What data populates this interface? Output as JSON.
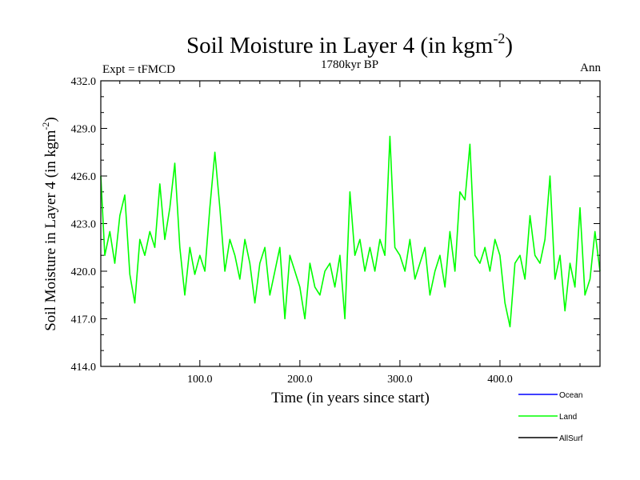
{
  "header": {
    "title_main": "Soil Moisture in Layer 4 (in kgm",
    "title_sup": "-2",
    "title_close": ")",
    "subtitle": "1780kyr BP",
    "left_label": "Expt = tFMCD",
    "right_label": "Ann"
  },
  "axes": {
    "xlabel": "Time (in years since start)",
    "ylabel_main": "Soil Moisture in Layer 4 (in kgm",
    "ylabel_sup": "-2",
    "ylabel_close": ")"
  },
  "legend": {
    "items": [
      {
        "label": "Ocean",
        "color": "#0000ff"
      },
      {
        "label": "Land",
        "color": "#00ff00"
      },
      {
        "label": "AllSurf",
        "color": "#000000"
      }
    ]
  },
  "chart_data": {
    "type": "line",
    "title": "Soil Moisture in Layer 4 (in kgm-2)",
    "xlabel": "Time (in years since start)",
    "ylabel": "Soil Moisture in Layer 4 (in kgm-2)",
    "xlim": [
      1,
      500
    ],
    "ylim": [
      414,
      432
    ],
    "xticks": [
      100,
      200,
      300,
      400
    ],
    "xtick_labels": [
      "100.0",
      "200.0",
      "300.0",
      "400.0"
    ],
    "yticks": [
      414,
      417,
      420,
      423,
      426,
      429,
      432
    ],
    "ytick_labels": [
      "414.0",
      "417.0",
      "420.0",
      "423.0",
      "426.0",
      "429.0",
      "432.0"
    ],
    "series": [
      {
        "name": "Land",
        "color": "#00ff00",
        "x": [
          1,
          5,
          10,
          15,
          20,
          25,
          30,
          35,
          40,
          45,
          50,
          55,
          60,
          65,
          70,
          75,
          80,
          85,
          90,
          95,
          100,
          105,
          110,
          115,
          120,
          125,
          130,
          135,
          140,
          145,
          150,
          155,
          160,
          165,
          170,
          175,
          180,
          185,
          190,
          195,
          200,
          205,
          210,
          215,
          220,
          225,
          230,
          235,
          240,
          245,
          250,
          255,
          260,
          265,
          270,
          275,
          280,
          285,
          290,
          295,
          300,
          305,
          310,
          315,
          320,
          325,
          330,
          335,
          340,
          345,
          350,
          355,
          360,
          365,
          370,
          375,
          380,
          385,
          390,
          395,
          400,
          405,
          410,
          415,
          420,
          425,
          430,
          435,
          440,
          445,
          450,
          455,
          460,
          465,
          470,
          475,
          480,
          485,
          490,
          495,
          500
        ],
        "values": [
          426.0,
          421.0,
          422.5,
          420.5,
          423.5,
          424.8,
          419.8,
          418.0,
          422.0,
          421.0,
          422.5,
          421.5,
          425.5,
          422.0,
          424.0,
          426.8,
          421.5,
          418.5,
          421.5,
          419.8,
          421.0,
          420.0,
          424.0,
          427.5,
          424.0,
          420.0,
          422.0,
          421.0,
          419.5,
          422.0,
          420.5,
          418.0,
          420.5,
          421.5,
          418.5,
          420.0,
          421.5,
          417.0,
          421.0,
          420.0,
          419.0,
          417.0,
          420.5,
          419.0,
          418.5,
          420.0,
          420.5,
          419.0,
          421.0,
          417.0,
          425.0,
          421.0,
          422.0,
          420.0,
          421.5,
          420.0,
          422.0,
          421.0,
          428.5,
          421.5,
          421.0,
          420.0,
          422.0,
          419.5,
          420.5,
          421.5,
          418.5,
          420.0,
          421.0,
          419.0,
          422.5,
          420.0,
          425.0,
          424.5,
          428.0,
          421.0,
          420.5,
          421.5,
          420.0,
          422.0,
          421.0,
          418.0,
          416.5,
          420.5,
          421.0,
          419.5,
          423.5,
          421.0,
          420.5,
          422.0,
          426.0,
          419.5,
          421.0,
          417.5,
          420.5,
          419.0,
          424.0,
          418.5,
          419.5,
          422.5,
          420.0
        ]
      },
      {
        "name": "Ocean",
        "color": "#0000ff",
        "x": [],
        "values": []
      },
      {
        "name": "AllSurf",
        "color": "#000000",
        "x": [],
        "values": []
      }
    ]
  }
}
